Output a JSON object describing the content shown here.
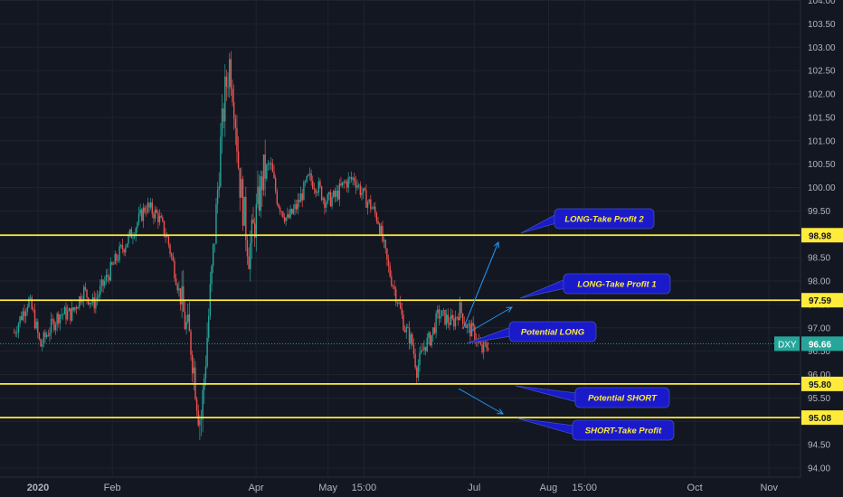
{
  "chart_data": {
    "type": "candlestick",
    "symbol": "DXY",
    "last_price": "96.66",
    "ylim": [
      93.8,
      104.0
    ],
    "y_ticks": [
      "94.00",
      "94.50",
      "95.00",
      "95.50",
      "96.00",
      "96.50",
      "97.00",
      "97.50",
      "98.00",
      "98.50",
      "99.00",
      "99.50",
      "100.00",
      "100.50",
      "101.00",
      "101.50",
      "102.00",
      "102.50",
      "103.00",
      "103.50",
      "104.00"
    ],
    "x_ticks": [
      {
        "label": "2020",
        "day": 0
      },
      {
        "label": "Feb",
        "day": 31
      },
      {
        "label": "Apr",
        "day": 91
      },
      {
        "label": "May",
        "day": 121
      },
      {
        "label": "15:00",
        "day": 136
      },
      {
        "label": "Jul",
        "day": 182
      },
      {
        "label": "Aug",
        "day": 213
      },
      {
        "label": "15:00",
        "day": 228
      },
      {
        "label": "Oct",
        "day": 274
      },
      {
        "label": "Nov",
        "day": 305
      }
    ],
    "price_path": [
      {
        "day": -10,
        "price": 96.9
      },
      {
        "day": -4,
        "price": 97.6
      },
      {
        "day": -2,
        "price": 97.3
      },
      {
        "day": 1,
        "price": 96.6
      },
      {
        "day": 4,
        "price": 96.9
      },
      {
        "day": 9,
        "price": 97.3
      },
      {
        "day": 14,
        "price": 97.3
      },
      {
        "day": 19,
        "price": 97.8
      },
      {
        "day": 23,
        "price": 97.5
      },
      {
        "day": 28,
        "price": 98.0
      },
      {
        "day": 34,
        "price": 98.6
      },
      {
        "day": 40,
        "price": 99.1
      },
      {
        "day": 45,
        "price": 99.6
      },
      {
        "day": 50,
        "price": 99.4
      },
      {
        "day": 54,
        "price": 98.9
      },
      {
        "day": 58,
        "price": 98.0
      },
      {
        "day": 61,
        "price": 97.2
      },
      {
        "day": 64,
        "price": 96.6
      },
      {
        "day": 67,
        "price": 95.2
      },
      {
        "day": 68,
        "price": 95.0
      },
      {
        "day": 70,
        "price": 96.4
      },
      {
        "day": 72,
        "price": 97.8
      },
      {
        "day": 74,
        "price": 99.2
      },
      {
        "day": 76,
        "price": 100.8
      },
      {
        "day": 78,
        "price": 102.0
      },
      {
        "day": 80,
        "price": 102.7
      },
      {
        "day": 82,
        "price": 101.8
      },
      {
        "day": 84,
        "price": 100.2
      },
      {
        "day": 86,
        "price": 99.4
      },
      {
        "day": 88,
        "price": 98.6
      },
      {
        "day": 91,
        "price": 99.4
      },
      {
        "day": 94,
        "price": 100.3
      },
      {
        "day": 97,
        "price": 100.5
      },
      {
        "day": 100,
        "price": 99.7
      },
      {
        "day": 104,
        "price": 99.3
      },
      {
        "day": 108,
        "price": 99.6
      },
      {
        "day": 113,
        "price": 100.2
      },
      {
        "day": 117,
        "price": 100.0
      },
      {
        "day": 120,
        "price": 99.7
      },
      {
        "day": 124,
        "price": 99.8
      },
      {
        "day": 128,
        "price": 100.1
      },
      {
        "day": 132,
        "price": 100.2
      },
      {
        "day": 136,
        "price": 99.8
      },
      {
        "day": 139,
        "price": 99.6
      },
      {
        "day": 142,
        "price": 99.3
      },
      {
        "day": 146,
        "price": 98.3
      },
      {
        "day": 150,
        "price": 97.6
      },
      {
        "day": 153,
        "price": 97.0
      },
      {
        "day": 156,
        "price": 96.7
      },
      {
        "day": 158,
        "price": 96.1
      },
      {
        "day": 161,
        "price": 96.6
      },
      {
        "day": 164,
        "price": 96.8
      },
      {
        "day": 167,
        "price": 97.3
      },
      {
        "day": 170,
        "price": 97.2
      },
      {
        "day": 173,
        "price": 97.1
      },
      {
        "day": 176,
        "price": 97.4
      },
      {
        "day": 179,
        "price": 97.0
      },
      {
        "day": 182,
        "price": 96.9
      },
      {
        "day": 185,
        "price": 96.5
      },
      {
        "day": 188,
        "price": 96.66
      }
    ],
    "horizontal_levels": [
      {
        "value": 98.98,
        "label": "98.98",
        "color": "#ffeb3b"
      },
      {
        "value": 97.59,
        "label": "97.59",
        "color": "#ffeb3b"
      },
      {
        "value": 95.8,
        "label": "95.80",
        "color": "#ffeb3b"
      },
      {
        "value": 95.08,
        "label": "95.08",
        "color": "#ffeb3b"
      }
    ],
    "annotations": [
      {
        "text": "LONG-Take Profit 2",
        "target_price": 98.98
      },
      {
        "text": "LONG-Take Profit 1",
        "target_price": 97.59
      },
      {
        "text": "Potential LONG",
        "target_price": 96.66
      },
      {
        "text": "Potential SHORT",
        "target_price": 95.8
      },
      {
        "text": "SHORT-Take Profit",
        "target_price": 95.08
      }
    ],
    "colors": {
      "background": "#131722",
      "up": "#26a69a",
      "down": "#ef5350",
      "levels": "#ffeb3b",
      "callout_fill": "#1a1acb",
      "callout_text": "#ffeb3b",
      "arrows": "#2196f3",
      "last_price_tag": "#26a69a"
    }
  }
}
